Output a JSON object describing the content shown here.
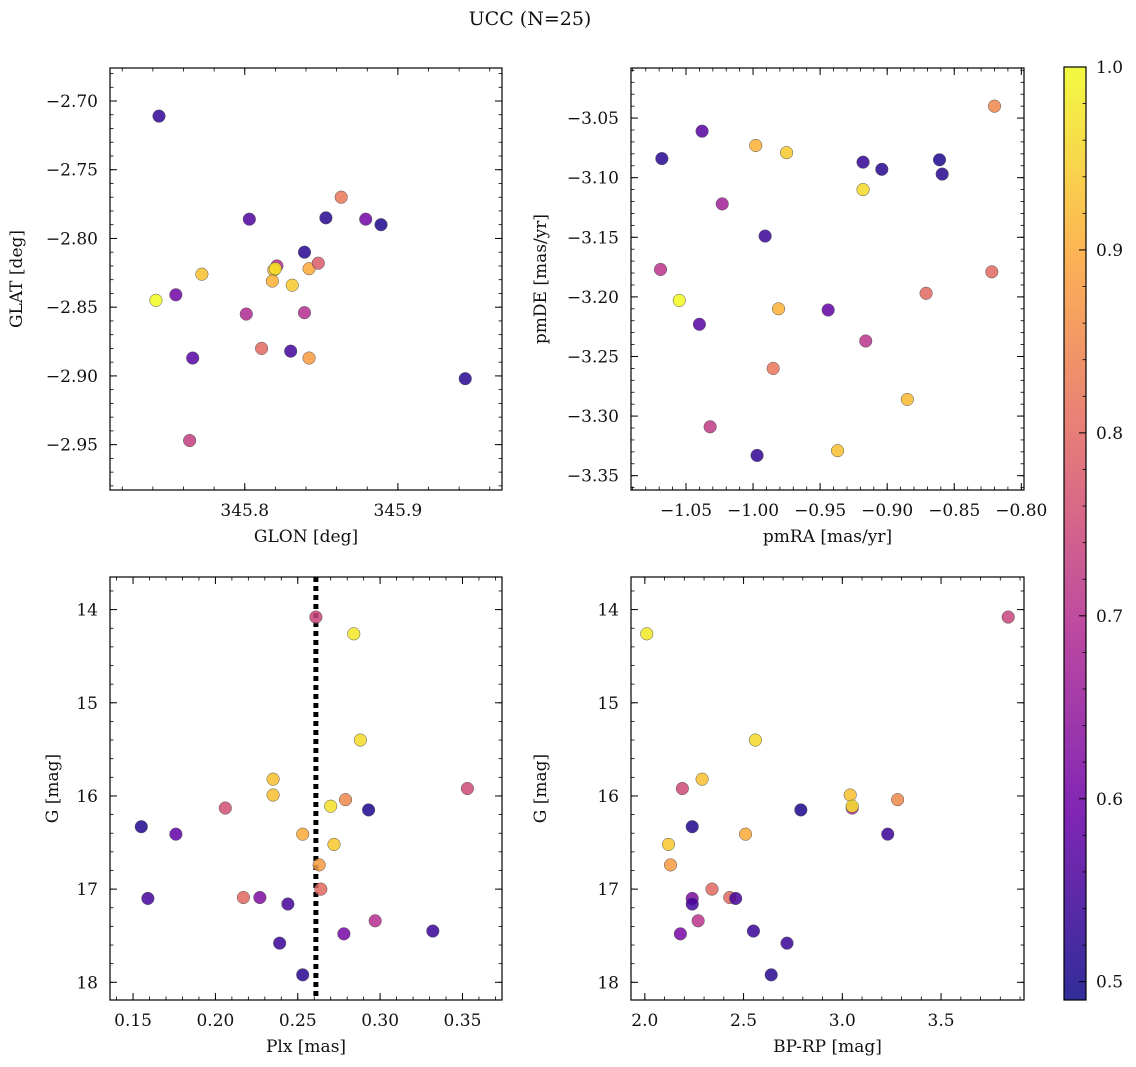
{
  "figure": {
    "title": "UCC (N=25)",
    "colormap": [
      "#0d0887",
      "#6a00a8",
      "#b12a90",
      "#e16462",
      "#fca636",
      "#f0f921"
    ]
  },
  "chart_data": [
    {
      "type": "scatter",
      "name": "sky-position",
      "xlabel": "GLON [deg]",
      "ylabel": "GLAT [deg]",
      "xlim": [
        345.712,
        345.968
      ],
      "ylim": [
        -2.983,
        -2.676
      ],
      "xticks": [
        345.8,
        345.9
      ],
      "xtick_labels": [
        "345.8",
        "345.9"
      ],
      "yticks": [
        -2.95,
        -2.9,
        -2.85,
        -2.8,
        -2.75,
        -2.7
      ],
      "ytick_labels": [
        "−2.95",
        "−2.90",
        "−2.85",
        "−2.80",
        "−2.75",
        "−2.70"
      ],
      "y_inverted": false,
      "x": [
        345.744,
        345.863,
        345.803,
        345.853,
        345.879,
        345.889,
        345.839,
        345.821,
        345.772,
        345.819,
        345.842,
        345.848,
        345.818,
        345.831,
        345.742,
        345.755,
        345.801,
        345.839,
        345.811,
        345.83,
        345.842,
        345.766,
        345.944,
        345.764,
        345.82
      ],
      "y": [
        -2.711,
        -2.77,
        -2.786,
        -2.785,
        -2.786,
        -2.79,
        -2.81,
        -2.82,
        -2.826,
        -2.823,
        -2.822,
        -2.818,
        -2.831,
        -2.834,
        -2.845,
        -2.841,
        -2.855,
        -2.854,
        -2.88,
        -2.882,
        -2.887,
        -2.887,
        -2.902,
        -2.947,
        -2.822
      ],
      "c": [
        0.53,
        0.82,
        0.56,
        0.52,
        0.6,
        0.51,
        0.52,
        0.7,
        0.93,
        0.92,
        0.9,
        0.78,
        0.91,
        0.94,
        1.0,
        0.6,
        0.69,
        0.7,
        0.8,
        0.55,
        0.88,
        0.57,
        0.52,
        0.73,
        0.97
      ]
    },
    {
      "type": "scatter",
      "name": "proper-motion",
      "xlabel": "pmRA [mas/yr]",
      "ylabel": "pmDE [mas/yr]",
      "xlim": [
        -1.091,
        -0.798
      ],
      "ylim": [
        -3.362,
        -3.008
      ],
      "xticks": [
        -1.05,
        -1.0,
        -0.95,
        -0.9,
        -0.85,
        -0.8
      ],
      "xtick_labels": [
        "−1.05",
        "−1.00",
        "−0.95",
        "−0.90",
        "−0.85",
        "−0.80"
      ],
      "yticks": [
        -3.35,
        -3.3,
        -3.25,
        -3.2,
        -3.15,
        -3.1,
        -3.05
      ],
      "ytick_labels": [
        "−3.35",
        "−3.30",
        "−3.25",
        "−3.20",
        "−3.15",
        "−3.10",
        "−3.05"
      ],
      "y_inverted": false,
      "x": [
        -1.068,
        -1.038,
        -0.998,
        -0.975,
        -0.918,
        -0.904,
        -0.861,
        -0.859,
        -0.82,
        -0.918,
        -1.023,
        -0.991,
        -1.069,
        -1.055,
        -0.871,
        -0.822,
        -1.04,
        -0.981,
        -0.944,
        -0.916,
        -0.985,
        -0.885,
        -1.032,
        -0.997,
        -0.937
      ],
      "y": [
        -3.084,
        -3.061,
        -3.073,
        -3.079,
        -3.087,
        -3.093,
        -3.085,
        -3.097,
        -3.04,
        -3.11,
        -3.122,
        -3.149,
        -3.177,
        -3.203,
        -3.197,
        -3.179,
        -3.223,
        -3.21,
        -3.211,
        -3.237,
        -3.26,
        -3.286,
        -3.309,
        -3.333,
        -3.329
      ],
      "c": [
        0.52,
        0.57,
        0.91,
        0.94,
        0.53,
        0.52,
        0.51,
        0.52,
        0.85,
        0.96,
        0.67,
        0.54,
        0.71,
        1.0,
        0.8,
        0.8,
        0.57,
        0.91,
        0.58,
        0.71,
        0.82,
        0.92,
        0.72,
        0.53,
        0.93
      ]
    },
    {
      "type": "scatter",
      "name": "parallax-magnitude",
      "xlabel": "Plx [mas]",
      "ylabel": "G [mag]",
      "xlim": [
        0.136,
        0.374
      ],
      "ylim": [
        18.19,
        13.65
      ],
      "xticks": [
        0.15,
        0.2,
        0.25,
        0.3,
        0.35
      ],
      "xtick_labels": [
        "0.15",
        "0.20",
        "0.25",
        "0.30",
        "0.35"
      ],
      "yticks": [
        14,
        15,
        16,
        17,
        18
      ],
      "ytick_labels": [
        "14",
        "15",
        "16",
        "17",
        "18"
      ],
      "y_inverted": true,
      "vline": 0.261,
      "x": [
        0.261,
        0.284,
        0.288,
        0.353,
        0.235,
        0.235,
        0.279,
        0.206,
        0.27,
        0.293,
        0.155,
        0.176,
        0.253,
        0.272,
        0.263,
        0.264,
        0.159,
        0.217,
        0.227,
        0.244,
        0.297,
        0.332,
        0.278,
        0.239,
        0.253
      ],
      "y": [
        14.08,
        14.26,
        15.4,
        15.92,
        15.82,
        15.99,
        16.04,
        16.13,
        16.11,
        16.15,
        16.33,
        16.41,
        16.41,
        16.52,
        16.74,
        17.0,
        17.1,
        17.09,
        17.09,
        17.16,
        17.34,
        17.45,
        17.48,
        17.58,
        17.92
      ],
      "c": [
        0.74,
        0.98,
        0.96,
        0.75,
        0.93,
        0.93,
        0.85,
        0.76,
        0.97,
        0.51,
        0.51,
        0.58,
        0.9,
        0.94,
        0.88,
        0.8,
        0.55,
        0.8,
        0.62,
        0.55,
        0.7,
        0.54,
        0.61,
        0.54,
        0.52
      ]
    },
    {
      "type": "scatter",
      "name": "color-magnitude",
      "xlabel": "BP-RP [mag]",
      "ylabel": "G [mag]",
      "xlim": [
        1.93,
        3.92
      ],
      "ylim": [
        18.19,
        13.65
      ],
      "xticks": [
        2.0,
        2.5,
        3.0,
        3.5
      ],
      "xtick_labels": [
        "2.0",
        "2.5",
        "3.0",
        "3.5"
      ],
      "yticks": [
        14,
        15,
        16,
        17,
        18
      ],
      "ytick_labels": [
        "14",
        "15",
        "16",
        "17",
        "18"
      ],
      "y_inverted": true,
      "x": [
        3.84,
        2.01,
        2.56,
        2.19,
        2.29,
        3.04,
        3.28,
        2.79,
        3.05,
        3.05,
        2.24,
        3.23,
        2.51,
        2.12,
        2.13,
        2.34,
        2.43,
        2.46,
        2.24,
        2.24,
        2.27,
        2.55,
        2.18,
        2.72,
        2.64
      ],
      "y": [
        14.08,
        14.26,
        15.4,
        15.92,
        15.82,
        15.99,
        16.04,
        16.15,
        16.13,
        16.11,
        16.33,
        16.41,
        16.41,
        16.52,
        16.74,
        17.0,
        17.09,
        17.1,
        17.1,
        17.16,
        17.34,
        17.45,
        17.48,
        17.58,
        17.92
      ],
      "c": [
        0.74,
        0.98,
        0.96,
        0.75,
        0.93,
        0.93,
        0.85,
        0.51,
        0.7,
        0.97,
        0.51,
        0.54,
        0.9,
        0.94,
        0.88,
        0.8,
        0.8,
        0.55,
        0.62,
        0.55,
        0.71,
        0.54,
        0.61,
        0.54,
        0.52
      ]
    }
  ],
  "colorbar": {
    "range": [
      0.49,
      1.0
    ],
    "ticks": [
      0.5,
      0.6,
      0.7,
      0.8,
      0.9,
      1.0
    ],
    "tick_labels": [
      "0.5",
      "0.6",
      "0.7",
      "0.8",
      "0.9",
      "1.0"
    ]
  }
}
